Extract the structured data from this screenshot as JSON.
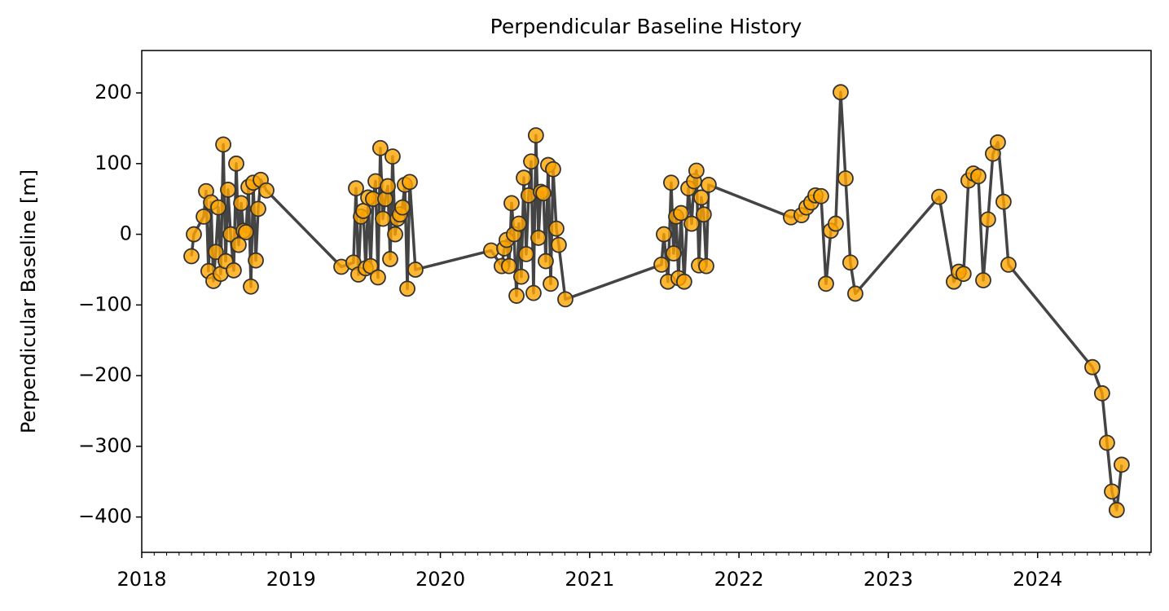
{
  "chart_data": {
    "type": "line",
    "title": "Perpendicular Baseline History",
    "y_label": "Perpendicular Baseline [m]",
    "x": [
      2018.333,
      2018.349,
      2018.415,
      2018.431,
      2018.447,
      2018.464,
      2018.48,
      2018.496,
      2018.513,
      2018.529,
      2018.546,
      2018.562,
      2018.578,
      2018.595,
      2018.616,
      2018.633,
      2018.649,
      2018.666,
      2018.682,
      2018.698,
      2018.715,
      2018.731,
      2018.747,
      2018.764,
      2018.78,
      2018.797,
      2018.835,
      2019.337,
      2019.418,
      2019.435,
      2019.451,
      2019.468,
      2019.484,
      2019.5,
      2019.517,
      2019.533,
      2019.549,
      2019.566,
      2019.582,
      2019.598,
      2019.615,
      2019.631,
      2019.648,
      2019.664,
      2019.68,
      2019.697,
      2019.713,
      2019.729,
      2019.746,
      2019.762,
      2019.779,
      2019.795,
      2019.833,
      2020.34,
      2020.411,
      2020.428,
      2020.444,
      2020.46,
      2020.477,
      2020.493,
      2020.51,
      2020.526,
      2020.542,
      2020.559,
      2020.575,
      2020.591,
      2020.608,
      2020.624,
      2020.64,
      2020.657,
      2020.673,
      2020.69,
      2020.706,
      2020.722,
      2020.739,
      2020.755,
      2020.777,
      2020.793,
      2020.837,
      2021.481,
      2021.497,
      2021.524,
      2021.546,
      2021.562,
      2021.579,
      2021.595,
      2021.612,
      2021.633,
      2021.661,
      2021.683,
      2021.699,
      2021.715,
      2021.732,
      2021.748,
      2021.764,
      2021.781,
      2021.797,
      2022.348,
      2022.419,
      2022.452,
      2022.484,
      2022.512,
      2022.55,
      2022.583,
      2022.615,
      2022.648,
      2022.681,
      2022.714,
      2022.746,
      2022.779,
      2023.341,
      2023.439,
      2023.472,
      2023.504,
      2023.537,
      2023.57,
      2023.603,
      2023.636,
      2023.668,
      2023.701,
      2023.734,
      2023.772,
      2023.805,
      2024.367,
      2024.432,
      2024.465,
      2024.498,
      2024.53,
      2024.563
    ],
    "values": [
      -31,
      0,
      25,
      61,
      -52,
      45,
      -66,
      -25,
      38,
      -56,
      127,
      -38,
      63,
      0,
      -51,
      100,
      -15,
      44,
      5,
      3,
      67,
      -74,
      73,
      -37,
      36,
      77,
      62,
      -46,
      -40,
      65,
      -57,
      25,
      33,
      -48,
      52,
      -45,
      50,
      75,
      -61,
      122,
      22,
      50,
      68,
      -35,
      110,
      0,
      22,
      28,
      38,
      70,
      -77,
      74,
      -50,
      -23,
      -45,
      -20,
      -8,
      -45,
      44,
      0,
      -87,
      15,
      -60,
      80,
      -28,
      55,
      103,
      -83,
      140,
      -5,
      60,
      58,
      -38,
      98,
      -70,
      92,
      8,
      -15,
      -92,
      -43,
      0,
      -67,
      73,
      -27,
      25,
      -62,
      30,
      -67,
      65,
      15,
      75,
      90,
      -44,
      52,
      28,
      -45,
      70,
      24,
      27,
      38,
      45,
      55,
      54,
      -70,
      5,
      15,
      201,
      79,
      -40,
      -84,
      53,
      -67,
      -53,
      -56,
      76,
      86,
      82,
      -65,
      21,
      114,
      130,
      46,
      -43,
      -188,
      -225,
      -295,
      -364,
      -390,
      -326
    ],
    "line_color": "#444444",
    "marker_color": "#ffa500",
    "marker_edge_color": "#333333",
    "xlim": [
      2018,
      2024.76
    ],
    "xticks": [
      2018,
      2019,
      2020,
      2021,
      2022,
      2023,
      2024
    ],
    "ylim": [
      -450,
      260
    ],
    "yticks": [
      {
        "value": -400,
        "label": "−400"
      },
      {
        "value": -300,
        "label": "−300"
      },
      {
        "value": -200,
        "label": "−200"
      },
      {
        "value": -100,
        "label": "−100"
      },
      0,
      100,
      200
    ],
    "grid": false
  }
}
